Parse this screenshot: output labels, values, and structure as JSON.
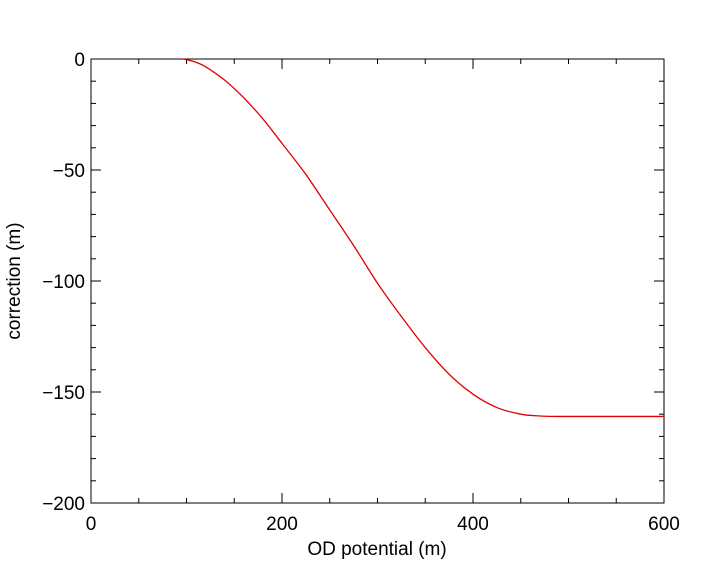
{
  "chart_data": {
    "type": "line",
    "title": "",
    "xlabel": "OD potential (m)",
    "ylabel": "correction (m)",
    "xlim": [
      0,
      600
    ],
    "ylim": [
      -200,
      0
    ],
    "xticks": [
      0,
      200,
      400,
      600
    ],
    "yticks": [
      0,
      -50,
      -100,
      -150,
      -200
    ],
    "x_tick_labels": [
      "0",
      "200",
      "400",
      "600"
    ],
    "y_tick_labels": [
      "0",
      "−50",
      "−100",
      "−150",
      "−200"
    ],
    "x_minor_step": 50,
    "y_minor_step": 10,
    "grid": false,
    "series": [
      {
        "color": "#e00000",
        "x": [
          95,
          100,
          110,
          120,
          140,
          160,
          180,
          200,
          225,
          250,
          275,
          300,
          325,
          350,
          375,
          400,
          425,
          450,
          470,
          487,
          500,
          550,
          600
        ],
        "y": [
          0,
          -0.3,
          -1.5,
          -3.5,
          -9.5,
          -17.5,
          -27,
          -38,
          -52,
          -68,
          -84,
          -101,
          -116,
          -130,
          -142,
          -151,
          -157,
          -160,
          -160.8,
          -161,
          -161,
          -161,
          -161
        ]
      }
    ]
  }
}
